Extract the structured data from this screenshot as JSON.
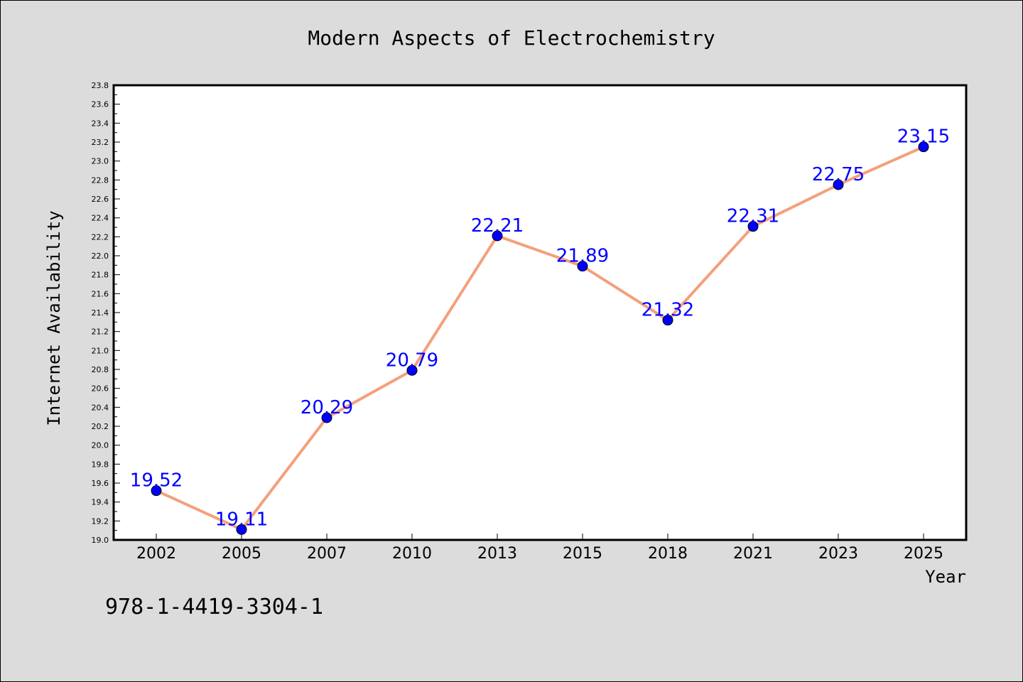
{
  "chart_data": {
    "type": "line",
    "title": "Modern Aspects of Electrochemistry",
    "xlabel": "Year",
    "ylabel": "Internet Availability",
    "categories": [
      "2002",
      "2005",
      "2007",
      "2010",
      "2013",
      "2015",
      "2018",
      "2021",
      "2023",
      "2025"
    ],
    "values": [
      19.52,
      19.11,
      20.29,
      20.79,
      22.21,
      21.89,
      21.32,
      22.31,
      22.75,
      23.15
    ],
    "data_labels": [
      "19.52",
      "19.11",
      "20.29",
      "20.79",
      "22.21",
      "21.89",
      "21.32",
      "22.31",
      "22.75",
      "23.15"
    ],
    "ylim": [
      19.0,
      23.8
    ],
    "yticks": [
      "19.0",
      "19.2",
      "19.4",
      "19.6",
      "19.8",
      "20.0",
      "20.2",
      "20.4",
      "20.6",
      "20.8",
      "21.0",
      "21.2",
      "21.4",
      "21.6",
      "21.8",
      "22.0",
      "22.2",
      "22.4",
      "22.6",
      "22.8",
      "23.0",
      "23.2",
      "23.4",
      "23.6",
      "23.8"
    ],
    "grid": false,
    "line_color": "#f4a07c",
    "marker_color": "#0000ff",
    "label_color": "#0000ff"
  },
  "footer": {
    "isbn": "978-1-4419-3304-1"
  }
}
